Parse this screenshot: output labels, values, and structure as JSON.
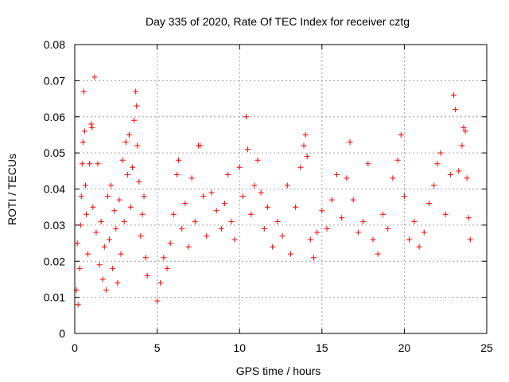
{
  "chart_data": {
    "type": "scatter",
    "title": "Day 335 of 2020, Rate Of TEC Index for receiver cztg",
    "xlabel": "GPS time / hours",
    "ylabel": "ROTI / TECUs",
    "xlim": [
      0,
      25
    ],
    "ylim": [
      0,
      0.08
    ],
    "xticks": [
      0,
      5,
      10,
      15,
      20,
      25
    ],
    "xtick_labels": [
      "0",
      "5",
      "10",
      "15",
      "20",
      "25"
    ],
    "yticks": [
      0,
      0.01,
      0.02,
      0.03,
      0.04,
      0.05,
      0.06,
      0.07,
      0.08
    ],
    "ytick_labels": [
      "0",
      "0.01",
      "0.02",
      "0.03",
      "0.04",
      "0.05",
      "0.06",
      "0.07",
      "0.08"
    ],
    "grid": true,
    "legend": "none",
    "series": [
      {
        "name": "ROTI",
        "color": "#ff0000",
        "marker": "plus",
        "points": [
          [
            0.1,
            0.012
          ],
          [
            0.15,
            0.025
          ],
          [
            0.2,
            0.008
          ],
          [
            0.3,
            0.018
          ],
          [
            0.35,
            0.03
          ],
          [
            0.4,
            0.038
          ],
          [
            0.45,
            0.047
          ],
          [
            0.5,
            0.053
          ],
          [
            0.55,
            0.067
          ],
          [
            0.6,
            0.056
          ],
          [
            0.65,
            0.041
          ],
          [
            0.7,
            0.033
          ],
          [
            0.8,
            0.022
          ],
          [
            0.9,
            0.047
          ],
          [
            1.0,
            0.058
          ],
          [
            1.05,
            0.057
          ],
          [
            1.1,
            0.035
          ],
          [
            1.2,
            0.071
          ],
          [
            1.3,
            0.028
          ],
          [
            1.4,
            0.047
          ],
          [
            1.5,
            0.019
          ],
          [
            1.6,
            0.031
          ],
          [
            1.7,
            0.015
          ],
          [
            1.8,
            0.024
          ],
          [
            1.9,
            0.012
          ],
          [
            2.0,
            0.038
          ],
          [
            2.1,
            0.026
          ],
          [
            2.2,
            0.041
          ],
          [
            2.3,
            0.018
          ],
          [
            2.4,
            0.034
          ],
          [
            2.5,
            0.029
          ],
          [
            2.6,
            0.014
          ],
          [
            2.7,
            0.037
          ],
          [
            2.8,
            0.022
          ],
          [
            2.9,
            0.048
          ],
          [
            3.0,
            0.031
          ],
          [
            3.1,
            0.053
          ],
          [
            3.2,
            0.044
          ],
          [
            3.3,
            0.055
          ],
          [
            3.4,
            0.035
          ],
          [
            3.5,
            0.046
          ],
          [
            3.6,
            0.059
          ],
          [
            3.7,
            0.067
          ],
          [
            3.75,
            0.063
          ],
          [
            3.8,
            0.052
          ],
          [
            3.9,
            0.042
          ],
          [
            4.0,
            0.027
          ],
          [
            4.1,
            0.033
          ],
          [
            4.2,
            0.038
          ],
          [
            4.3,
            0.021
          ],
          [
            4.4,
            0.016
          ],
          [
            5.0,
            0.009
          ],
          [
            5.2,
            0.014
          ],
          [
            5.4,
            0.021
          ],
          [
            5.6,
            0.018
          ],
          [
            5.8,
            0.025
          ],
          [
            6.0,
            0.033
          ],
          [
            6.2,
            0.044
          ],
          [
            6.3,
            0.048
          ],
          [
            6.5,
            0.029
          ],
          [
            6.7,
            0.036
          ],
          [
            6.9,
            0.024
          ],
          [
            7.1,
            0.043
          ],
          [
            7.3,
            0.031
          ],
          [
            7.5,
            0.052
          ],
          [
            7.6,
            0.052
          ],
          [
            7.8,
            0.038
          ],
          [
            8.0,
            0.027
          ],
          [
            8.3,
            0.039
          ],
          [
            8.6,
            0.034
          ],
          [
            8.9,
            0.029
          ],
          [
            9.1,
            0.036
          ],
          [
            9.3,
            0.044
          ],
          [
            9.5,
            0.031
          ],
          [
            9.7,
            0.026
          ],
          [
            10.0,
            0.046
          ],
          [
            10.2,
            0.038
          ],
          [
            10.4,
            0.06
          ],
          [
            10.5,
            0.051
          ],
          [
            10.7,
            0.033
          ],
          [
            10.9,
            0.041
          ],
          [
            11.1,
            0.048
          ],
          [
            11.3,
            0.039
          ],
          [
            11.5,
            0.029
          ],
          [
            11.7,
            0.035
          ],
          [
            12.0,
            0.024
          ],
          [
            12.3,
            0.031
          ],
          [
            12.6,
            0.027
          ],
          [
            12.9,
            0.041
          ],
          [
            13.1,
            0.022
          ],
          [
            13.4,
            0.035
          ],
          [
            13.7,
            0.046
          ],
          [
            13.9,
            0.052
          ],
          [
            14.0,
            0.055
          ],
          [
            14.1,
            0.049
          ],
          [
            14.3,
            0.026
          ],
          [
            14.5,
            0.021
          ],
          [
            14.7,
            0.028
          ],
          [
            15.0,
            0.034
          ],
          [
            15.3,
            0.029
          ],
          [
            15.6,
            0.037
          ],
          [
            15.9,
            0.044
          ],
          [
            16.2,
            0.032
          ],
          [
            16.5,
            0.043
          ],
          [
            16.7,
            0.053
          ],
          [
            16.9,
            0.037
          ],
          [
            17.2,
            0.028
          ],
          [
            17.5,
            0.031
          ],
          [
            17.8,
            0.047
          ],
          [
            18.1,
            0.026
          ],
          [
            18.4,
            0.022
          ],
          [
            18.7,
            0.033
          ],
          [
            19.0,
            0.029
          ],
          [
            19.3,
            0.043
          ],
          [
            19.6,
            0.048
          ],
          [
            19.8,
            0.055
          ],
          [
            20.0,
            0.038
          ],
          [
            20.3,
            0.026
          ],
          [
            20.6,
            0.031
          ],
          [
            20.9,
            0.024
          ],
          [
            21.2,
            0.028
          ],
          [
            21.5,
            0.036
          ],
          [
            21.8,
            0.041
          ],
          [
            22.0,
            0.047
          ],
          [
            22.2,
            0.05
          ],
          [
            22.5,
            0.033
          ],
          [
            22.8,
            0.044
          ],
          [
            23.0,
            0.066
          ],
          [
            23.1,
            0.062
          ],
          [
            23.3,
            0.045
          ],
          [
            23.5,
            0.052
          ],
          [
            23.6,
            0.057
          ],
          [
            23.7,
            0.056
          ],
          [
            23.8,
            0.043
          ],
          [
            23.9,
            0.032
          ],
          [
            24.0,
            0.026
          ]
        ]
      }
    ]
  }
}
